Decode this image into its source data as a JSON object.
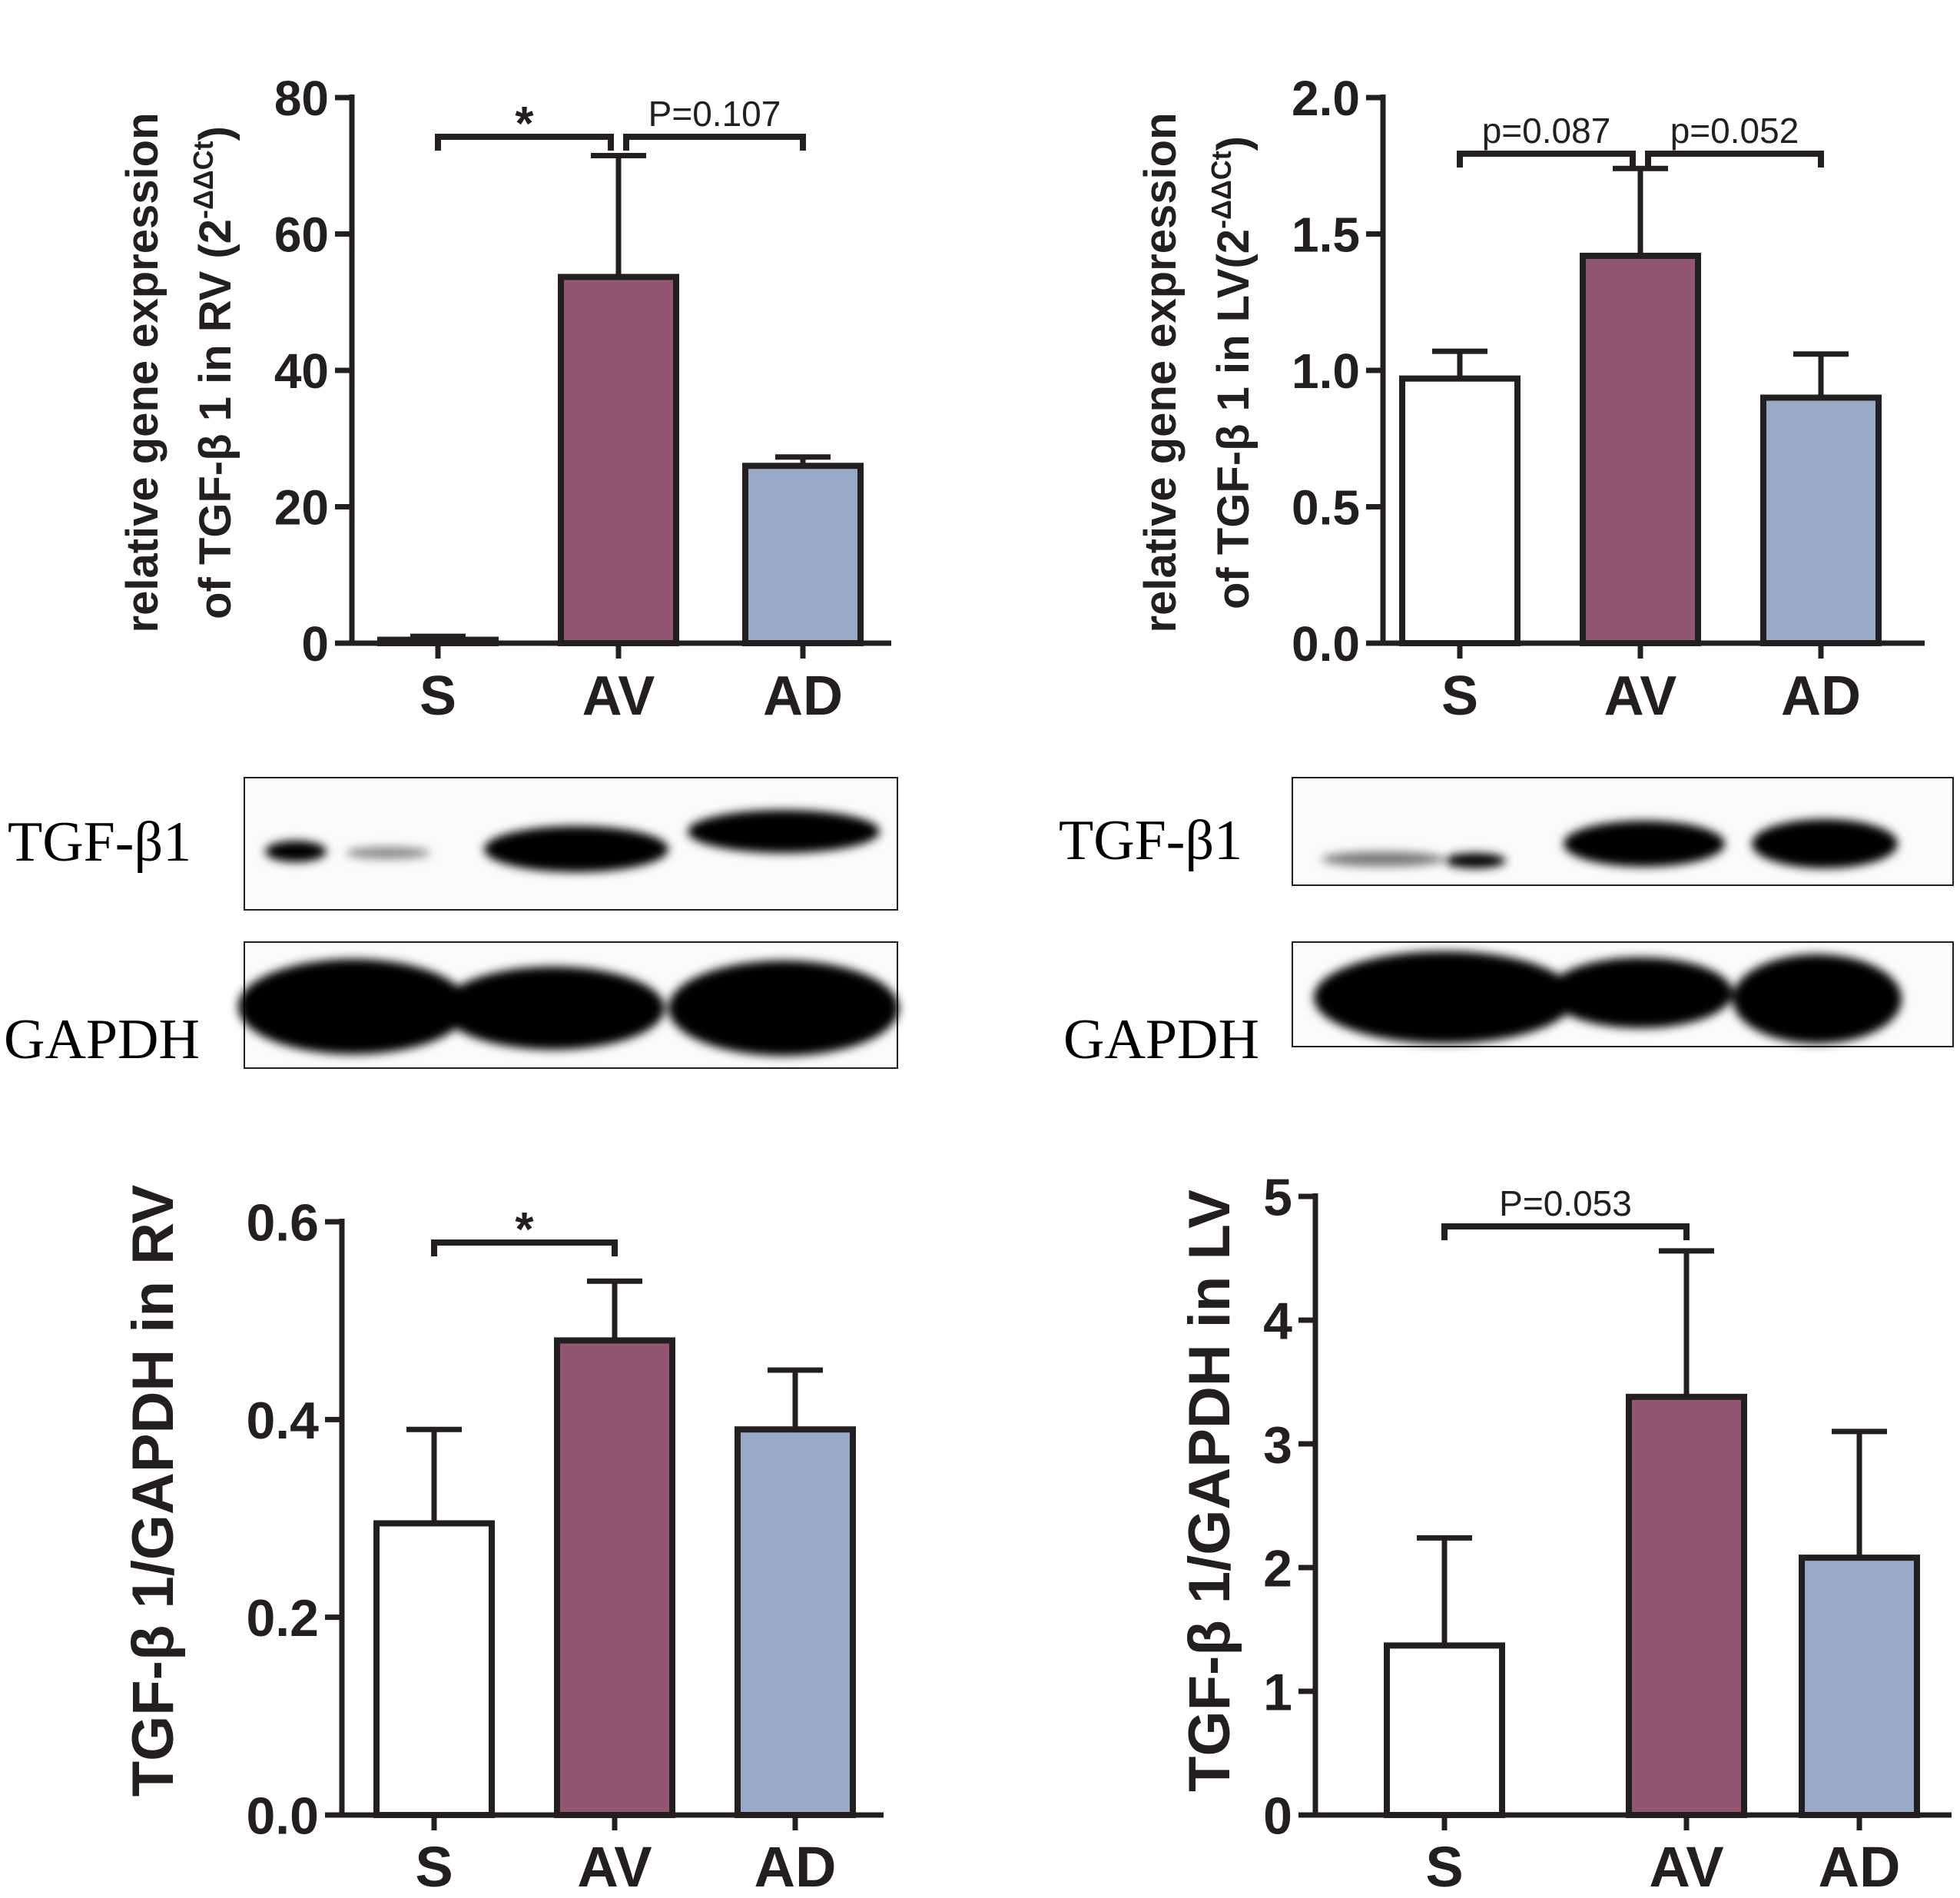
{
  "colors": {
    "ink": "#231f20",
    "S": "#ffffff",
    "AV": "#905672",
    "AD": "#97a9c7"
  },
  "blots": {
    "left": {
      "tgf_label": "TGF-β1",
      "gapdh_label": "GAPDH"
    },
    "right": {
      "tgf_label": "TGF-β1",
      "gapdh_label": "GAPDH"
    }
  },
  "chart_data": [
    {
      "id": "rv-mrna",
      "type": "bar",
      "categories": [
        "S",
        "AV",
        "AD"
      ],
      "values": [
        0.5,
        53.7,
        26.0
      ],
      "errors": [
        0.5,
        17.8,
        1.3
      ],
      "ylabel_line1": "relative gene expression",
      "ylabel_line2_prefix": "of TGF-β 1 in RV (2",
      "ylabel_sup": "-ΔΔCt",
      "ylabel_suffix": ")",
      "ylim": [
        0,
        80
      ],
      "yticks": [
        "0",
        "20",
        "40",
        "60",
        "80"
      ],
      "significance": [
        {
          "from": "S",
          "to": "AV",
          "label": "*"
        },
        {
          "from": "AV",
          "to": "AD",
          "label": "P=0.107"
        }
      ]
    },
    {
      "id": "lv-mrna",
      "type": "bar",
      "categories": [
        "S",
        "AV",
        "AD"
      ],
      "values": [
        0.97,
        1.42,
        0.9
      ],
      "errors": [
        0.1,
        0.32,
        0.16
      ],
      "ylabel_line1": "relative gene expression",
      "ylabel_line2_prefix": "of TGF-β 1 in LV(2",
      "ylabel_sup": "-ΔΔCt",
      "ylabel_suffix": ")",
      "ylim": [
        0,
        2.0
      ],
      "yticks": [
        "0.0",
        "0.5",
        "1.0",
        "1.5",
        "2.0"
      ],
      "significance": [
        {
          "from": "S",
          "to": "AV",
          "label": "p=0.087"
        },
        {
          "from": "AV",
          "to": "AD",
          "label": "p=0.052"
        }
      ]
    },
    {
      "id": "rv-protein",
      "type": "bar",
      "categories": [
        "S",
        "AV",
        "AD"
      ],
      "values": [
        0.295,
        0.48,
        0.39
      ],
      "errors": [
        0.095,
        0.06,
        0.06
      ],
      "ylabel": "TGF-β 1/GAPDH in RV",
      "ylim": [
        0,
        0.6
      ],
      "yticks": [
        "0.0",
        "0.2",
        "0.4",
        "0.6"
      ],
      "significance": [
        {
          "from": "S",
          "to": "AV",
          "label": "*"
        }
      ]
    },
    {
      "id": "lv-protein",
      "type": "bar",
      "categories": [
        "S",
        "AV",
        "AD"
      ],
      "values": [
        1.37,
        3.38,
        2.08
      ],
      "errors": [
        0.87,
        1.18,
        1.02
      ],
      "ylabel": "TGF-β 1/GAPDH in LV",
      "ylim": [
        0,
        5
      ],
      "yticks": [
        "0",
        "1",
        "2",
        "3",
        "4",
        "5"
      ],
      "significance": [
        {
          "from": "S",
          "to": "AV",
          "label": "P=0.053"
        }
      ]
    }
  ]
}
